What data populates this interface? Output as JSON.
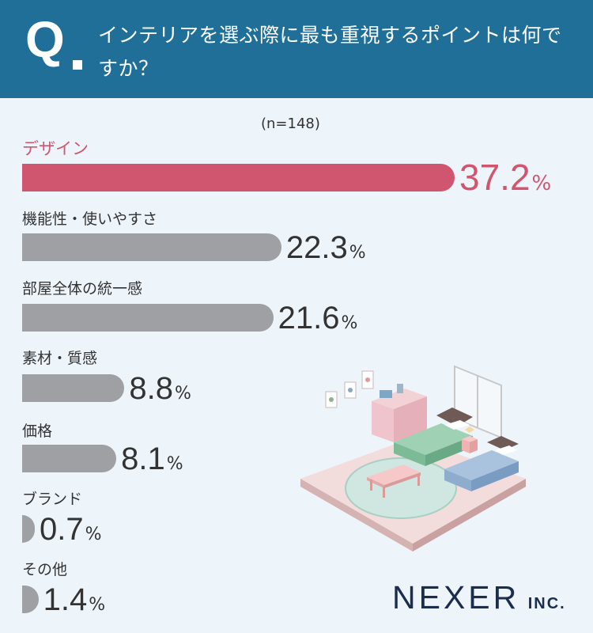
{
  "header": {
    "q_mark": "Q",
    "question": "インテリアを選ぶ際に最も重視するポイントは何ですか？"
  },
  "sample_size": "(n=148)",
  "chart_data": {
    "type": "bar",
    "orientation": "horizontal",
    "categories": [
      "デザイン",
      "機能性・使いやすさ",
      "部屋全体の統一感",
      "素材・質感",
      "価格",
      "ブランド",
      "その他"
    ],
    "values": [
      37.2,
      22.3,
      21.6,
      8.8,
      8.1,
      0.7,
      1.4
    ],
    "value_labels": [
      "37.2",
      "22.3",
      "21.6",
      "8.8",
      "8.1",
      "0.7",
      "1.4"
    ],
    "unit": "%",
    "title": "インテリアを選ぶ際に最も重視するポイントは何ですか？",
    "xlabel": "",
    "ylabel": "",
    "highlight_index": 0,
    "colors": {
      "highlight": "#d0556f",
      "default": "#9fa0a4"
    }
  },
  "logo": {
    "main": "NEXER",
    "sub": "INC."
  }
}
